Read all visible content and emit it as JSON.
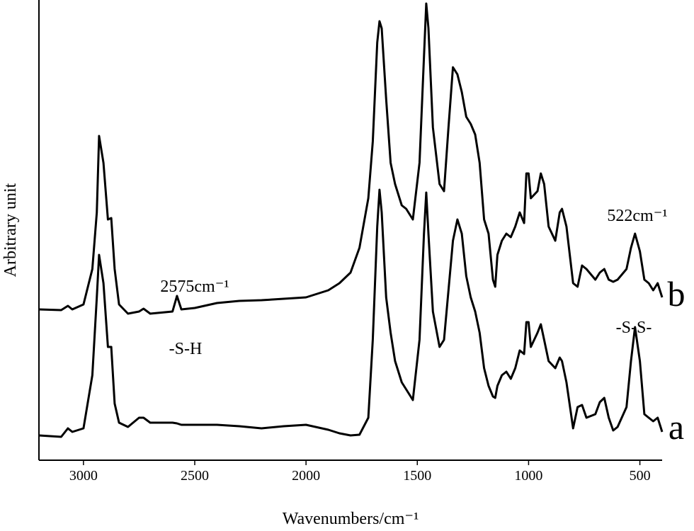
{
  "chart_data": {
    "type": "line",
    "x_label": "Wavenumbers/cm⁻¹",
    "y_label": "Arbitrary unit",
    "annotations": [
      "2575cm⁻¹",
      "-S-H",
      "522cm⁻¹",
      "-S-S-"
    ],
    "xlim": [
      3200,
      400
    ],
    "ylim": [
      0,
      650
    ],
    "xticks": [
      3000,
      2500,
      2000,
      1500,
      1000,
      500
    ],
    "x": [
      3200,
      3100,
      3070,
      3050,
      3000,
      2960,
      2940,
      2930,
      2910,
      2890,
      2875,
      2860,
      2840,
      2800,
      2750,
      2730,
      2700,
      2600,
      2580,
      2560,
      2500,
      2400,
      2300,
      2200,
      2100,
      2000,
      1900,
      1850,
      1800,
      1760,
      1720,
      1700,
      1680,
      1670,
      1660,
      1640,
      1620,
      1600,
      1570,
      1550,
      1520,
      1490,
      1470,
      1460,
      1450,
      1430,
      1400,
      1380,
      1360,
      1340,
      1320,
      1300,
      1280,
      1260,
      1240,
      1220,
      1200,
      1180,
      1160,
      1150,
      1140,
      1120,
      1100,
      1080,
      1060,
      1040,
      1020,
      1010,
      1000,
      990,
      960,
      945,
      930,
      910,
      880,
      860,
      850,
      830,
      800,
      780,
      760,
      740,
      700,
      680,
      660,
      640,
      620,
      600,
      560,
      540,
      522,
      500,
      480,
      460,
      440,
      420,
      400
    ],
    "series": [
      {
        "name": "b",
        "color": "#000000",
        "values": [
          213,
          212,
          218,
          213,
          220,
          270,
          350,
          458,
          420,
          340,
          342,
          270,
          220,
          207,
          210,
          214,
          207,
          210,
          232,
          213,
          215,
          222,
          225,
          226,
          228,
          230,
          240,
          250,
          265,
          300,
          370,
          450,
          590,
          620,
          610,
          510,
          420,
          390,
          360,
          355,
          340,
          420,
          570,
          645,
          610,
          470,
          390,
          380,
          470,
          555,
          545,
          520,
          485,
          475,
          460,
          420,
          340,
          320,
          255,
          245,
          290,
          310,
          320,
          315,
          330,
          350,
          335,
          405,
          405,
          370,
          380,
          405,
          390,
          330,
          310,
          350,
          355,
          330,
          250,
          245,
          275,
          270,
          255,
          265,
          270,
          255,
          252,
          255,
          270,
          300,
          320,
          295,
          255,
          250,
          240,
          250,
          230
        ]
      },
      {
        "name": "a",
        "color": "#000000",
        "values": [
          35,
          33,
          45,
          40,
          45,
          120,
          230,
          290,
          250,
          160,
          160,
          80,
          53,
          47,
          60,
          60,
          53,
          53,
          52,
          50,
          50,
          50,
          48,
          45,
          48,
          50,
          43,
          38,
          35,
          36,
          60,
          170,
          330,
          382,
          350,
          230,
          180,
          140,
          110,
          100,
          85,
          170,
          320,
          378,
          320,
          210,
          160,
          170,
          240,
          310,
          340,
          320,
          260,
          230,
          210,
          180,
          130,
          105,
          90,
          88,
          105,
          120,
          125,
          115,
          130,
          155,
          150,
          195,
          195,
          160,
          180,
          192,
          170,
          140,
          130,
          145,
          140,
          110,
          45,
          75,
          78,
          60,
          65,
          82,
          88,
          60,
          42,
          47,
          75,
          140,
          188,
          140,
          65,
          60,
          55,
          60,
          40
        ]
      }
    ]
  }
}
